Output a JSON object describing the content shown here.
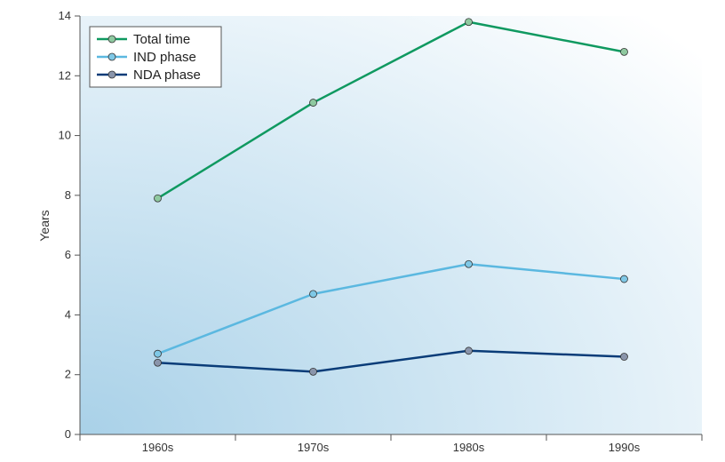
{
  "chart_data": {
    "type": "line",
    "title": "",
    "xlabel": "",
    "ylabel": "Years",
    "categories": [
      "1960s",
      "1970s",
      "1980s",
      "1990s"
    ],
    "ylim": [
      0,
      14
    ],
    "yticks": [
      0,
      2,
      4,
      6,
      8,
      10,
      12,
      14
    ],
    "grid": false,
    "legend_position": "top-left",
    "series": [
      {
        "name": "Total time",
        "color": "#0f9960",
        "marker_color": "#8fc9a0",
        "values": [
          7.9,
          11.1,
          13.8,
          12.8
        ]
      },
      {
        "name": "IND phase",
        "color": "#5bb8e0",
        "marker_color": "#7fc8e6",
        "values": [
          2.7,
          4.7,
          5.7,
          5.2
        ]
      },
      {
        "name": "NDA phase",
        "color": "#0a3c78",
        "marker_color": "#8a95ab",
        "values": [
          2.4,
          2.1,
          2.8,
          2.6
        ]
      }
    ]
  }
}
